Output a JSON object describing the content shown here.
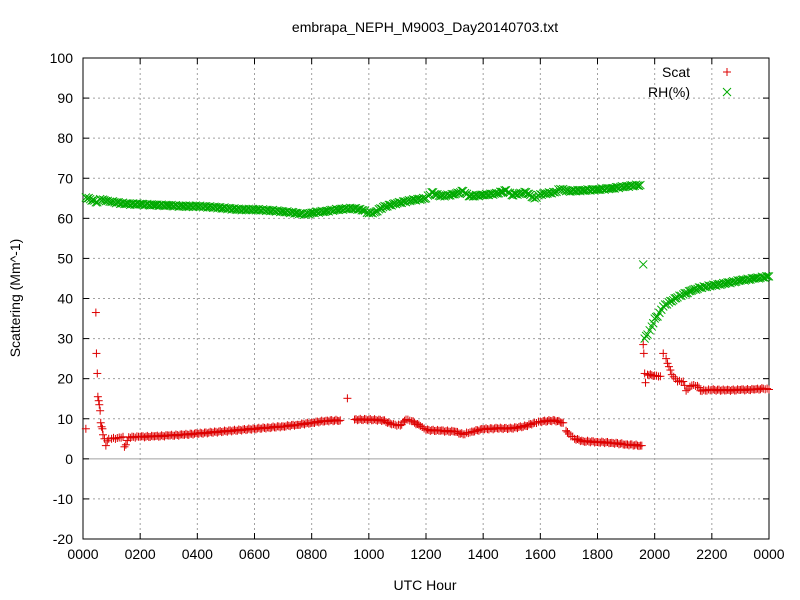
{
  "chart_data": {
    "type": "scatter",
    "title": "embrapa_NEPH_M9003_Day20140703.txt",
    "xlabel": "UTC Hour",
    "ylabel": "Scattering (Mm^-1)",
    "xlim": [
      0,
      24
    ],
    "ylim": [
      -20,
      100
    ],
    "yticks": [
      -20,
      -10,
      0,
      10,
      20,
      30,
      40,
      50,
      60,
      70,
      80,
      90,
      100
    ],
    "xticks": [
      {
        "value": 0,
        "label": "0000"
      },
      {
        "value": 2,
        "label": "0200"
      },
      {
        "value": 4,
        "label": "0400"
      },
      {
        "value": 6,
        "label": "0600"
      },
      {
        "value": 8,
        "label": "0800"
      },
      {
        "value": 10,
        "label": "1000"
      },
      {
        "value": 12,
        "label": "1200"
      },
      {
        "value": 14,
        "label": "1400"
      },
      {
        "value": 16,
        "label": "1600"
      },
      {
        "value": 18,
        "label": "1800"
      },
      {
        "value": 20,
        "label": "2000"
      },
      {
        "value": 22,
        "label": "2200"
      },
      {
        "value": 24,
        "label": "0000"
      }
    ],
    "grid": true,
    "legend": "top-right",
    "series": [
      {
        "name": "Scat",
        "marker": "+",
        "color": "#dd0000",
        "points": [
          [
            0.1,
            7.5
          ],
          [
            0.45,
            36.5
          ],
          [
            0.47,
            26.3
          ],
          [
            0.5,
            21.3
          ],
          [
            0.52,
            15.5
          ],
          [
            0.55,
            14.5
          ],
          [
            0.57,
            13.5
          ],
          [
            0.6,
            12.0
          ],
          [
            0.62,
            9.0
          ],
          [
            0.65,
            8.0
          ],
          [
            0.68,
            7.5
          ],
          [
            0.7,
            6.0
          ],
          [
            0.75,
            5.0
          ],
          [
            0.8,
            3.3
          ],
          [
            0.85,
            4.5
          ],
          [
            0.9,
            5.0
          ],
          [
            1.0,
            5.0
          ],
          [
            1.2,
            5.2
          ],
          [
            1.4,
            5.5
          ],
          [
            1.45,
            3.0
          ],
          [
            1.5,
            3.5
          ],
          [
            1.6,
            5.4
          ],
          [
            2.0,
            5.5
          ],
          [
            2.5,
            5.6
          ],
          [
            3.0,
            5.8
          ],
          [
            3.5,
            6.0
          ],
          [
            4.0,
            6.3
          ],
          [
            4.5,
            6.6
          ],
          [
            5.0,
            6.9
          ],
          [
            5.5,
            7.2
          ],
          [
            6.0,
            7.5
          ],
          [
            6.5,
            7.8
          ],
          [
            7.0,
            8.1
          ],
          [
            7.5,
            8.5
          ],
          [
            8.0,
            9.0
          ],
          [
            8.5,
            9.5
          ],
          [
            9.0,
            9.6
          ],
          [
            9.25,
            15.1
          ],
          [
            9.5,
            9.8
          ],
          [
            10.0,
            9.8
          ],
          [
            10.5,
            9.6
          ],
          [
            10.8,
            8.6
          ],
          [
            11.1,
            8.3
          ],
          [
            11.3,
            9.8
          ],
          [
            11.5,
            9.4
          ],
          [
            11.8,
            8.2
          ],
          [
            12.0,
            7.2
          ],
          [
            12.5,
            7.0
          ],
          [
            13.0,
            6.8
          ],
          [
            13.3,
            6.1
          ],
          [
            13.6,
            6.8
          ],
          [
            14.0,
            7.4
          ],
          [
            14.5,
            7.6
          ],
          [
            15.0,
            7.6
          ],
          [
            15.5,
            8.2
          ],
          [
            15.8,
            9.0
          ],
          [
            16.0,
            9.3
          ],
          [
            16.5,
            9.6
          ],
          [
            16.8,
            9.0
          ],
          [
            16.9,
            7.0
          ],
          [
            17.0,
            6.2
          ],
          [
            17.2,
            5.0
          ],
          [
            17.5,
            4.4
          ],
          [
            18.0,
            4.2
          ],
          [
            18.5,
            4.0
          ],
          [
            19.0,
            3.6
          ],
          [
            19.5,
            3.3
          ],
          [
            19.55,
            3.3
          ],
          [
            19.6,
            28.5
          ],
          [
            19.62,
            26.3
          ],
          [
            19.65,
            21.3
          ],
          [
            19.68,
            19.0
          ],
          [
            19.75,
            21.0
          ],
          [
            20.0,
            20.8
          ],
          [
            20.2,
            20.6
          ],
          [
            20.3,
            26.3
          ],
          [
            20.4,
            25.0
          ],
          [
            20.5,
            23.0
          ],
          [
            20.6,
            21.0
          ],
          [
            20.8,
            19.3
          ],
          [
            21.0,
            19.3
          ],
          [
            21.1,
            17.0
          ],
          [
            21.3,
            18.3
          ],
          [
            21.5,
            18.2
          ],
          [
            21.6,
            17.0
          ],
          [
            22.0,
            17.2
          ],
          [
            22.5,
            17.1
          ],
          [
            23.0,
            17.2
          ],
          [
            23.5,
            17.3
          ],
          [
            23.8,
            17.5
          ],
          [
            24.0,
            17.3
          ]
        ]
      },
      {
        "name": "RH(%)",
        "marker": "x",
        "color": "#00aa00",
        "points": [
          [
            0.1,
            65.2
          ],
          [
            0.5,
            64.0
          ],
          [
            0.6,
            64.8
          ],
          [
            0.8,
            64.3
          ],
          [
            1.0,
            64.1
          ],
          [
            1.5,
            63.6
          ],
          [
            2.0,
            63.5
          ],
          [
            2.5,
            63.3
          ],
          [
            3.0,
            63.2
          ],
          [
            3.5,
            63.0
          ],
          [
            4.0,
            63.0
          ],
          [
            4.5,
            62.8
          ],
          [
            5.0,
            62.5
          ],
          [
            5.5,
            62.2
          ],
          [
            6.0,
            62.2
          ],
          [
            6.5,
            62.0
          ],
          [
            7.0,
            61.7
          ],
          [
            7.5,
            61.3
          ],
          [
            7.8,
            61.0
          ],
          [
            8.0,
            61.4
          ],
          [
            8.5,
            61.8
          ],
          [
            9.0,
            62.3
          ],
          [
            9.5,
            62.5
          ],
          [
            9.8,
            62.0
          ],
          [
            10.0,
            61.3
          ],
          [
            10.2,
            61.5
          ],
          [
            10.5,
            62.8
          ],
          [
            11.0,
            63.8
          ],
          [
            11.5,
            64.5
          ],
          [
            12.0,
            65.0
          ],
          [
            12.2,
            66.5
          ],
          [
            12.5,
            65.5
          ],
          [
            13.0,
            66.0
          ],
          [
            13.3,
            66.8
          ],
          [
            13.5,
            65.5
          ],
          [
            14.0,
            65.8
          ],
          [
            14.5,
            66.2
          ],
          [
            14.8,
            67.0
          ],
          [
            15.0,
            65.8
          ],
          [
            15.5,
            66.5
          ],
          [
            15.8,
            65.0
          ],
          [
            16.0,
            66.0
          ],
          [
            16.5,
            66.5
          ],
          [
            16.7,
            67.3
          ],
          [
            17.0,
            66.8
          ],
          [
            17.5,
            67.0
          ],
          [
            18.0,
            67.2
          ],
          [
            18.5,
            67.5
          ],
          [
            19.0,
            68.0
          ],
          [
            19.5,
            68.3
          ],
          [
            19.6,
            48.5
          ],
          [
            19.65,
            30.0
          ],
          [
            19.75,
            31.0
          ],
          [
            19.9,
            33.0
          ],
          [
            20.0,
            35.0
          ],
          [
            20.1,
            35.5
          ],
          [
            20.3,
            38.0
          ],
          [
            20.5,
            39.0
          ],
          [
            20.8,
            40.3
          ],
          [
            21.0,
            41.0
          ],
          [
            21.3,
            42.0
          ],
          [
            21.6,
            42.7
          ],
          [
            22.0,
            43.2
          ],
          [
            22.5,
            43.8
          ],
          [
            23.0,
            44.5
          ],
          [
            23.5,
            45.0
          ],
          [
            24.0,
            45.5
          ]
        ]
      }
    ]
  }
}
